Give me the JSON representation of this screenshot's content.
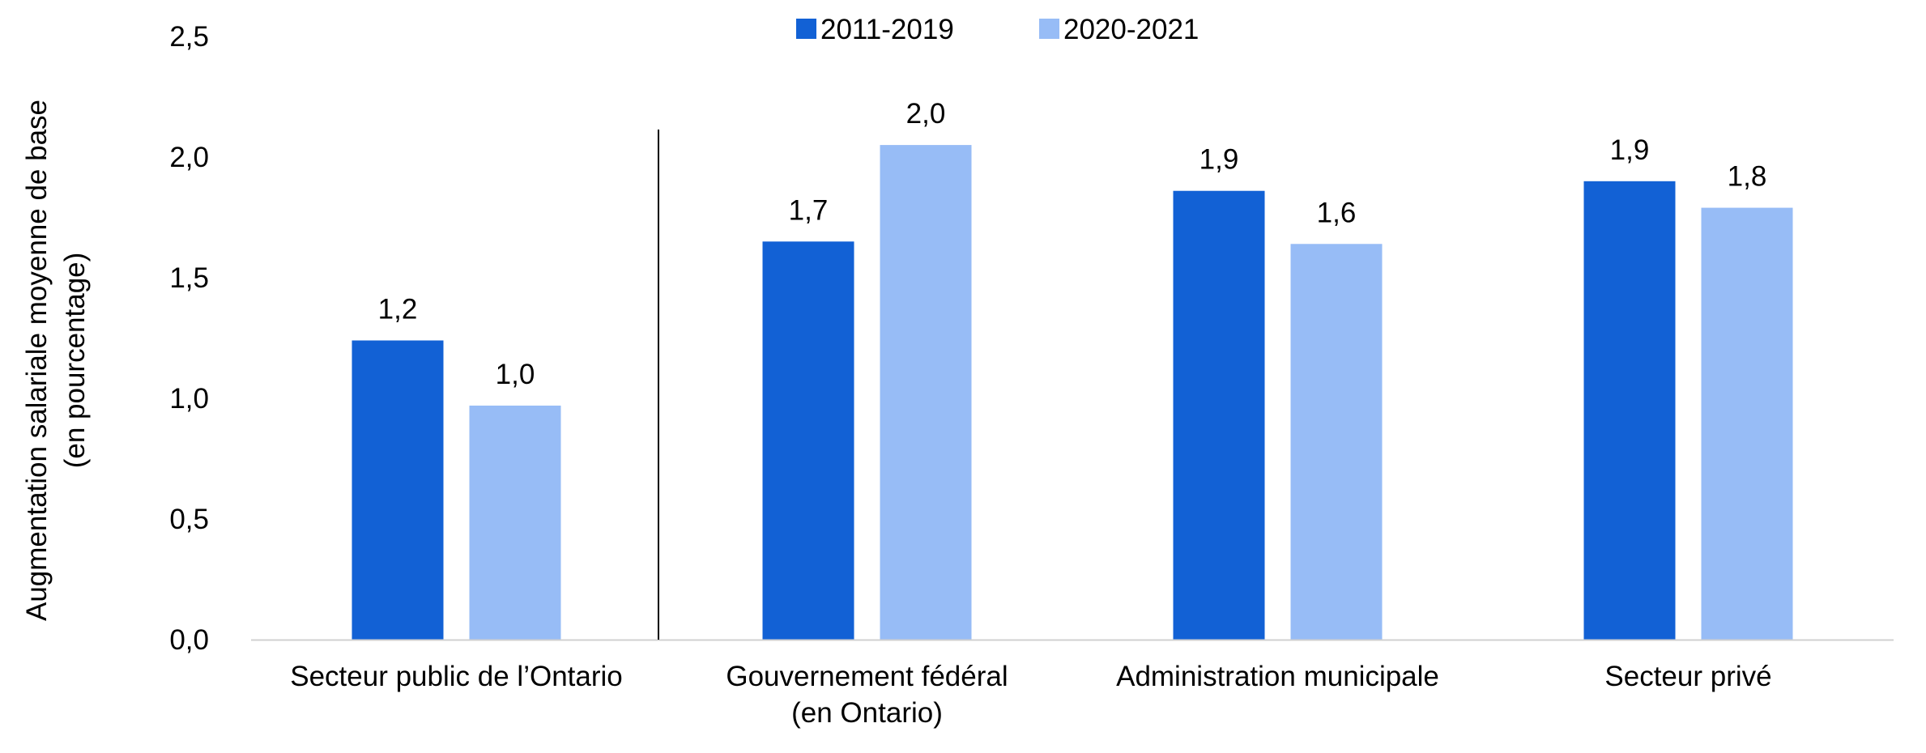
{
  "chart_data": {
    "type": "bar",
    "title": "",
    "ylabel_lines": [
      "Augmentation salariale moyenne de base",
      "(en pourcentage)"
    ],
    "xlabel": "",
    "ylim": [
      0,
      2.5
    ],
    "yticks": [
      0,
      0.5,
      1.0,
      1.5,
      2.0,
      2.5
    ],
    "ytick_labels": [
      "0,0",
      "0,5",
      "1,0",
      "1,5",
      "2,0",
      "2,5"
    ],
    "grid": false,
    "legend_position": "top",
    "categories": [
      [
        "Secteur public de l’Ontario"
      ],
      [
        "Gouvernement fédéral",
        "(en Ontario)"
      ],
      [
        "Administration municipale"
      ],
      [
        "Secteur privé"
      ]
    ],
    "series": [
      {
        "name": "2011-2019",
        "color": "#1261d5",
        "values": [
          1.24,
          1.65,
          1.86,
          1.9
        ],
        "labels": [
          "1,2",
          "1,7",
          "1,9",
          "1,9"
        ]
      },
      {
        "name": "2020-2021",
        "color": "#97bcf6",
        "values": [
          0.97,
          2.05,
          1.64,
          1.79
        ],
        "labels": [
          "1,0",
          "2,0",
          "1,6",
          "1,8"
        ]
      }
    ],
    "separator_after_category": 0
  }
}
